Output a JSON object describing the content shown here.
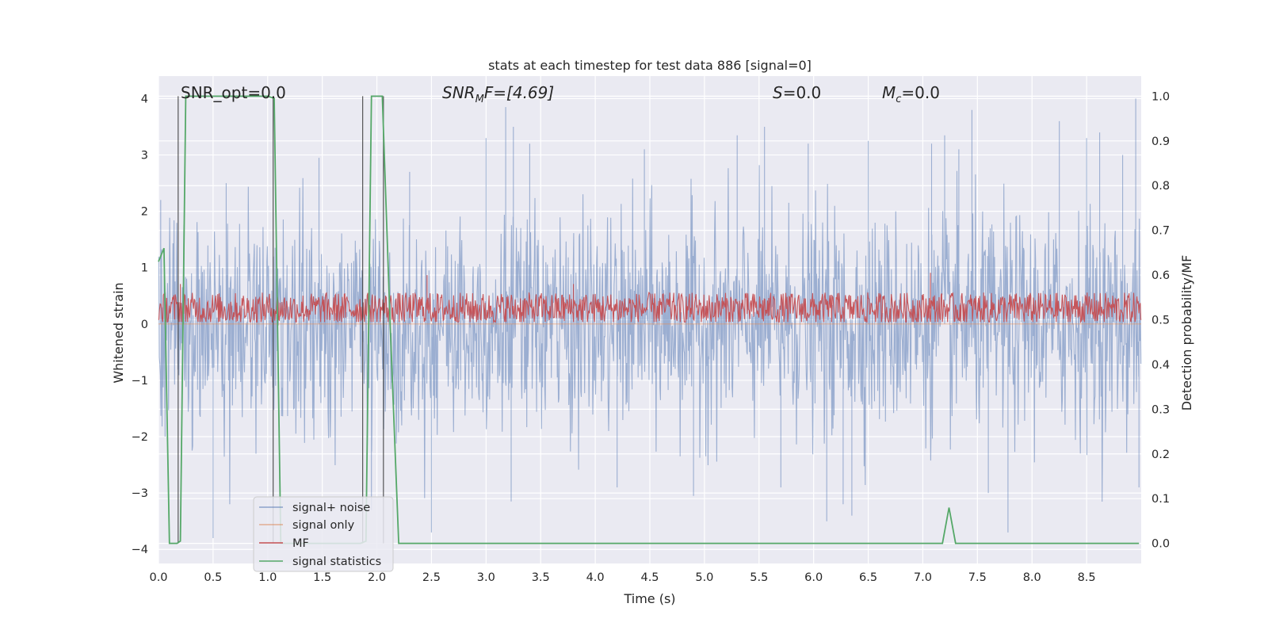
{
  "chart_data": {
    "type": "line",
    "title": "stats at each timestep for test data 886 [signal=0]",
    "xlabel": "Time (s)",
    "ylabel": "Whitened strain",
    "y2label": "Detection probability/MF",
    "xlim": [
      0,
      9.0
    ],
    "ylim": [
      -4.25,
      4.4
    ],
    "y2lim": [
      -0.045,
      1.045
    ],
    "xticks": [
      "0.0",
      "0.5",
      "1.0",
      "1.5",
      "2.0",
      "2.5",
      "3.0",
      "3.5",
      "4.0",
      "4.5",
      "5.0",
      "5.5",
      "6.0",
      "6.5",
      "7.0",
      "7.5",
      "8.0",
      "8.5"
    ],
    "yticks": [
      "4",
      "3",
      "2",
      "1",
      "0",
      "−1",
      "−2",
      "−3",
      "−4"
    ],
    "y2ticks": [
      "1.0",
      "0.9",
      "0.8",
      "0.7",
      "0.6",
      "0.5",
      "0.4",
      "0.3",
      "0.2",
      "0.1",
      "0.0"
    ],
    "grid": true,
    "legend_position": "lower-left",
    "annotations": {
      "snr_opt": "SNR_opt=0.0",
      "snr_mf_base": "SNR",
      "snr_mf_sub": "M",
      "snr_mf_rest": "F=[4.69]",
      "s_base": "S",
      "s_rest": "=0.0",
      "mc_base": "M",
      "mc_sub": "c",
      "mc_rest": "=0.0"
    },
    "series": [
      {
        "name": "signal+ noise",
        "color": "#4c72b0",
        "axis": "left",
        "description_stats": {
          "mean": 0,
          "std": 0.95,
          "min": -3.8,
          "max": 4.0
        },
        "spikes": [
          [
            0.02,
            2.2
          ],
          [
            0.06,
            -2.0
          ],
          [
            0.5,
            -3.8
          ],
          [
            0.62,
            2.5
          ],
          [
            1.47,
            2.95
          ],
          [
            1.95,
            -3.3
          ],
          [
            2.3,
            2.7
          ],
          [
            2.5,
            -3.7
          ],
          [
            3.0,
            3.3
          ],
          [
            3.18,
            3.85
          ],
          [
            3.23,
            -3.15
          ],
          [
            3.25,
            3.5
          ],
          [
            3.4,
            3.2
          ],
          [
            4.2,
            -2.9
          ],
          [
            4.45,
            3.1
          ],
          [
            4.9,
            -3.05
          ],
          [
            5.3,
            3.35
          ],
          [
            5.55,
            3.5
          ],
          [
            5.7,
            -2.9
          ],
          [
            5.95,
            3.2
          ],
          [
            6.12,
            -3.5
          ],
          [
            6.27,
            -3.2
          ],
          [
            6.35,
            -3.4
          ],
          [
            6.5,
            3.25
          ],
          [
            7.08,
            3.2
          ],
          [
            7.2,
            3.35
          ],
          [
            7.33,
            3.1
          ],
          [
            7.45,
            3.8
          ],
          [
            7.6,
            -3.0
          ],
          [
            7.78,
            -3.7
          ],
          [
            8.25,
            3.6
          ],
          [
            8.5,
            3.3
          ],
          [
            8.62,
            3.4
          ],
          [
            8.83,
            3.0
          ],
          [
            8.95,
            4.0
          ],
          [
            8.98,
            -2.9
          ]
        ]
      },
      {
        "name": "signal only",
        "color": "#dd8452",
        "axis": "left",
        "constant": 0
      },
      {
        "name": "MF",
        "color": "#c44e52",
        "axis": "right",
        "description_stats": {
          "mean": 0.525,
          "amplitude": 0.06,
          "min": 0.495,
          "max": 0.605
        },
        "peaks": [
          [
            0.2,
            0.58
          ],
          [
            2.46,
            0.6
          ],
          [
            3.8,
            0.58
          ],
          [
            7.07,
            0.605
          ]
        ]
      },
      {
        "name": "signal statistics",
        "color": "#55a868",
        "axis": "right",
        "x": [
          0.0,
          0.05,
          0.1,
          0.17,
          0.2,
          0.25,
          1.0,
          1.06,
          1.12,
          1.85,
          1.9,
          1.95,
          2.05,
          2.12,
          2.2,
          7.18,
          7.24,
          7.3,
          8.98
        ],
        "y": [
          0.63,
          0.66,
          0.0,
          0.0,
          0.005,
          1.0,
          1.0,
          0.995,
          0.0,
          0.0,
          0.005,
          1.0,
          1.0,
          0.5,
          0.0,
          0.0,
          0.08,
          0.0,
          0.0
        ]
      }
    ],
    "vlines": [
      0.18,
      1.05,
      1.87,
      2.06
    ],
    "vline_color": "#3a3a3a",
    "colors": {
      "plot_bg": "#eaeaf2",
      "grid": "#ffffff"
    }
  }
}
